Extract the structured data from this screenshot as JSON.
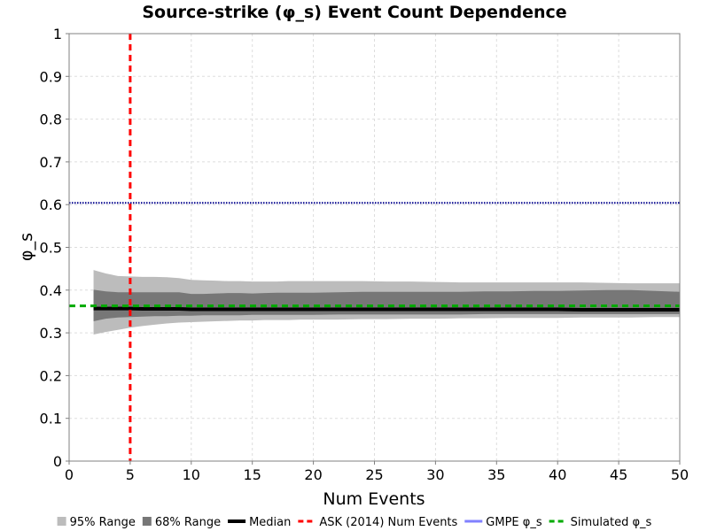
{
  "chart_data": {
    "type": "area",
    "title": "Source-strike (φ_s) Event Count Dependence",
    "xlabel": "Num Events",
    "ylabel": "φ_s",
    "xlim": [
      0,
      50
    ],
    "ylim": [
      0,
      1
    ],
    "x_ticks": [
      "0",
      "5",
      "10",
      "15",
      "20",
      "25",
      "30",
      "35",
      "40",
      "45",
      "50"
    ],
    "y_ticks": [
      "0",
      "0.1",
      "0.2",
      "0.3",
      "0.4",
      "0.5",
      "0.6",
      "0.7",
      "0.8",
      "0.9",
      "1"
    ],
    "grid": true,
    "legend_position": "bottom",
    "x": [
      2,
      3,
      4,
      5,
      6,
      7,
      8,
      9,
      10,
      11,
      12,
      13,
      14,
      15,
      16,
      17,
      18,
      19,
      20,
      22,
      24,
      26,
      28,
      30,
      32,
      34,
      36,
      38,
      40,
      42,
      44,
      46,
      48,
      50
    ],
    "series": [
      {
        "name": "95% Range",
        "color": "#bcbcbc",
        "lower": [
          0.296,
          0.302,
          0.307,
          0.312,
          0.316,
          0.319,
          0.322,
          0.324,
          0.325,
          0.326,
          0.327,
          0.328,
          0.329,
          0.329,
          0.33,
          0.33,
          0.33,
          0.331,
          0.331,
          0.331,
          0.332,
          0.332,
          0.333,
          0.333,
          0.334,
          0.334,
          0.335,
          0.335,
          0.335,
          0.336,
          0.336,
          0.336,
          0.337,
          0.337
        ],
        "upper": [
          0.447,
          0.439,
          0.433,
          0.432,
          0.431,
          0.431,
          0.43,
          0.428,
          0.424,
          0.423,
          0.422,
          0.421,
          0.421,
          0.42,
          0.42,
          0.42,
          0.421,
          0.421,
          0.421,
          0.421,
          0.421,
          0.42,
          0.42,
          0.419,
          0.418,
          0.418,
          0.418,
          0.418,
          0.418,
          0.418,
          0.417,
          0.416,
          0.416,
          0.416
        ]
      },
      {
        "name": "68% Range",
        "color": "#777777",
        "lower": [
          0.327,
          0.333,
          0.336,
          0.337,
          0.338,
          0.339,
          0.339,
          0.34,
          0.34,
          0.341,
          0.341,
          0.341,
          0.341,
          0.342,
          0.342,
          0.342,
          0.342,
          0.342,
          0.342,
          0.343,
          0.343,
          0.343,
          0.343,
          0.343,
          0.343,
          0.344,
          0.344,
          0.344,
          0.344,
          0.344,
          0.344,
          0.344,
          0.344,
          0.344
        ],
        "upper": [
          0.401,
          0.397,
          0.395,
          0.395,
          0.395,
          0.395,
          0.395,
          0.395,
          0.391,
          0.391,
          0.392,
          0.393,
          0.393,
          0.392,
          0.393,
          0.394,
          0.394,
          0.394,
          0.394,
          0.395,
          0.396,
          0.396,
          0.396,
          0.396,
          0.396,
          0.397,
          0.397,
          0.398,
          0.398,
          0.399,
          0.4,
          0.4,
          0.398,
          0.396
        ]
      },
      {
        "name": "Median",
        "color": "#000000",
        "values": [
          0.357,
          0.357,
          0.357,
          0.357,
          0.356,
          0.356,
          0.356,
          0.356,
          0.355,
          0.355,
          0.355,
          0.355,
          0.355,
          0.355,
          0.355,
          0.355,
          0.355,
          0.355,
          0.355,
          0.355,
          0.355,
          0.355,
          0.355,
          0.355,
          0.355,
          0.355,
          0.355,
          0.355,
          0.355,
          0.354,
          0.354,
          0.354,
          0.354,
          0.354
        ]
      }
    ],
    "reference_lines": [
      {
        "name": "ASK (2014) Num Events",
        "orientation": "vertical",
        "value": 5,
        "color": "#ff0000",
        "style": "dashed"
      },
      {
        "name": "GMPE φ_s",
        "orientation": "horizontal",
        "value": 0.604,
        "color": "#00008b",
        "legend_color": "#8080ff",
        "style": "dotted"
      },
      {
        "name": "Simulated φ_s",
        "orientation": "horizontal",
        "value": 0.363,
        "color": "#00aa00",
        "style": "dashed"
      }
    ],
    "colors": {
      "gridline": "#dddddd",
      "frame": "#808080"
    }
  }
}
